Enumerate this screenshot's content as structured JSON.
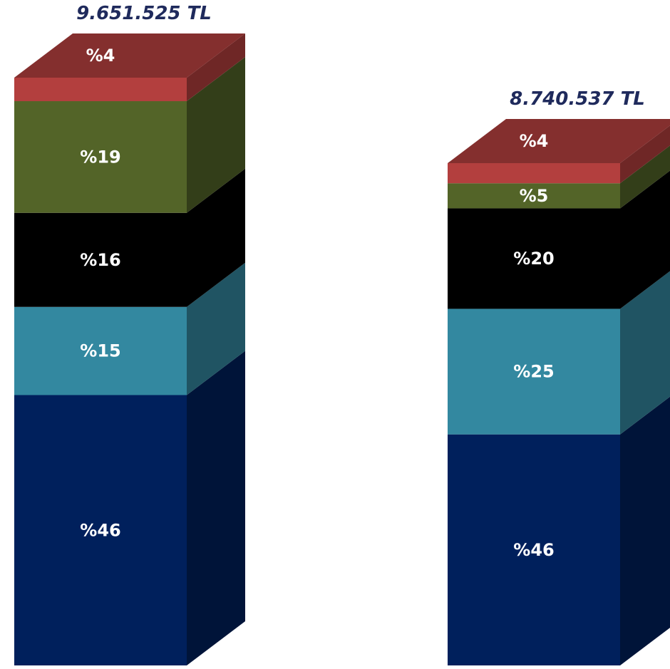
{
  "chart_data": {
    "type": "bar",
    "stacked": true,
    "categories": [
      "",
      ""
    ],
    "totals": [
      "9.651.525 TL",
      "8.740.537 TL"
    ],
    "series": [
      {
        "values": [
          46,
          46
        ],
        "labels": [
          "%46",
          "%46"
        ],
        "color": "#00205c"
      },
      {
        "values": [
          15,
          25
        ],
        "labels": [
          "%15",
          "%25"
        ],
        "color": "#3388a0"
      },
      {
        "values": [
          16,
          20
        ],
        "labels": [
          "%16",
          "%20"
        ],
        "color": "#000000"
      },
      {
        "values": [
          19,
          5
        ],
        "labels": [
          "%19",
          "%5"
        ],
        "color": "#536428"
      },
      {
        "values": [
          4,
          4
        ],
        "labels": [
          "%4",
          "%4"
        ],
        "color": "#b33f3e"
      }
    ],
    "totals_numeric": [
      9651525,
      8740537
    ],
    "grid": false,
    "legend": "none"
  }
}
